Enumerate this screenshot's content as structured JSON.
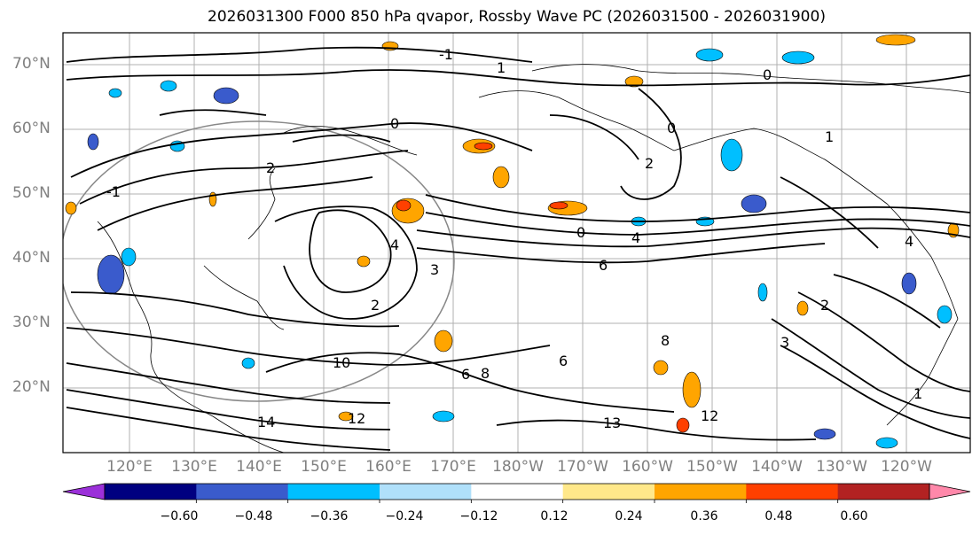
{
  "title": "2026031300 F000 850 hPa qvapor, Rossby Wave PC (2026031500 - 2026031900)",
  "map": {
    "lat_labels": [
      "70°N",
      "60°N",
      "50°N",
      "40°N",
      "30°N",
      "20°N"
    ],
    "lon_labels": [
      "120°E",
      "130°E",
      "140°E",
      "150°E",
      "160°E",
      "170°E",
      "180°W",
      "170°W",
      "160°W",
      "150°W",
      "140°W",
      "130°W",
      "120°W"
    ],
    "contour_labels": [
      "-1",
      "1",
      "0",
      "1",
      "0",
      "-1",
      "2",
      "0",
      "6",
      "4",
      "3",
      "2",
      "0",
      "2",
      "4",
      "6",
      "8",
      "10",
      "12",
      "13",
      "12",
      "14",
      "6",
      "8",
      "3",
      "2",
      "1",
      "4"
    ],
    "shading_colors": [
      "#9b30d9",
      "#000080",
      "#3a5bcc",
      "#00bfff",
      "#b0e0fa",
      "#ffffff",
      "#ffe88a",
      "#ffa500",
      "#ff4000",
      "#b22222",
      "#ff88aa"
    ]
  },
  "colorbar": {
    "colors": [
      "#9b30d9",
      "#000080",
      "#3a5bcc",
      "#00bfff",
      "#b0e0fa",
      "#ffffff",
      "#ffe88a",
      "#ffa500",
      "#ff4000",
      "#b22222",
      "#ff88aa"
    ],
    "tick_labels": [
      "−0.60",
      "−0.48",
      "−0.36",
      "−0.24",
      "−0.12",
      "0.12",
      "0.24",
      "0.36",
      "0.48",
      "0.60"
    ]
  }
}
